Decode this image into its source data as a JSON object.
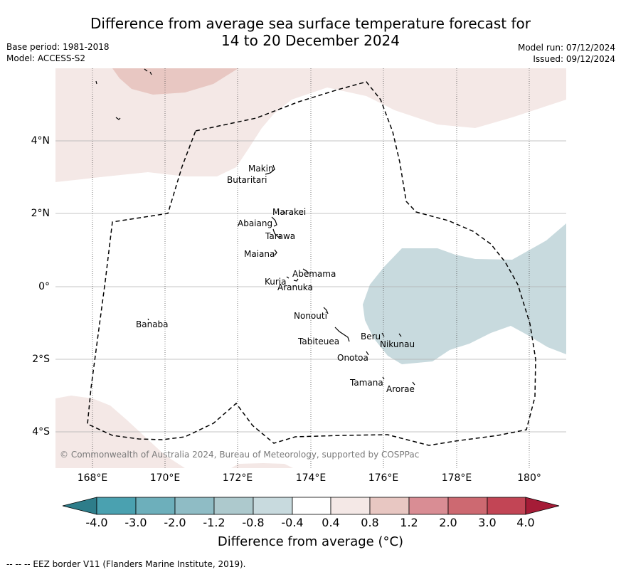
{
  "title_line1": "Difference from average sea surface temperature forecast for",
  "title_line2": "14 to 20 December 2024",
  "meta_left": {
    "base_period": "Base period: 1981-2018",
    "model": "Model: ACCESS-S2"
  },
  "meta_right": {
    "model_run": "Model run: 07/12/2024",
    "issued": "Issued: 09/12/2024"
  },
  "lat_labels": [
    "4°N",
    "2°N",
    "0°",
    "2°S",
    "4°S"
  ],
  "lon_labels": [
    "168°E",
    "170°E",
    "172°E",
    "174°E",
    "176°E",
    "178°E",
    "180°"
  ],
  "islands": [
    "Makin",
    "Butaritari",
    "Marakei",
    "Abaiang",
    "Tarawa",
    "Maiana",
    "Abemama",
    "Kuria",
    "Aranuka",
    "Banaba",
    "Nonouti",
    "Tabiteuea",
    "Beru",
    "Nikunau",
    "Onotoa",
    "Tamana",
    "Arorae"
  ],
  "copyright": "© Commonwealth of Australia 2024, Bureau of Meteorology, supported by COSPPac",
  "colorbar": {
    "ticks": [
      "-4.0",
      "-3.0",
      "-2.0",
      "-1.2",
      "-0.8",
      "-0.4",
      "0.4",
      "0.8",
      "1.2",
      "2.0",
      "3.0",
      "4.0"
    ],
    "colors": [
      "#2e7d8a",
      "#4aa1b0",
      "#6dafbb",
      "#8fbcc5",
      "#adc9cd",
      "#c8dade",
      "#ffffff",
      "#f4e8e6",
      "#e8c7c2",
      "#d98d94",
      "#cd6971",
      "#c24555",
      "#a51c37"
    ],
    "label": "Difference from average (°C)"
  },
  "footnote": "--  --  -- EEZ border V11 (Flanders Marine Institute, 2019)."
}
